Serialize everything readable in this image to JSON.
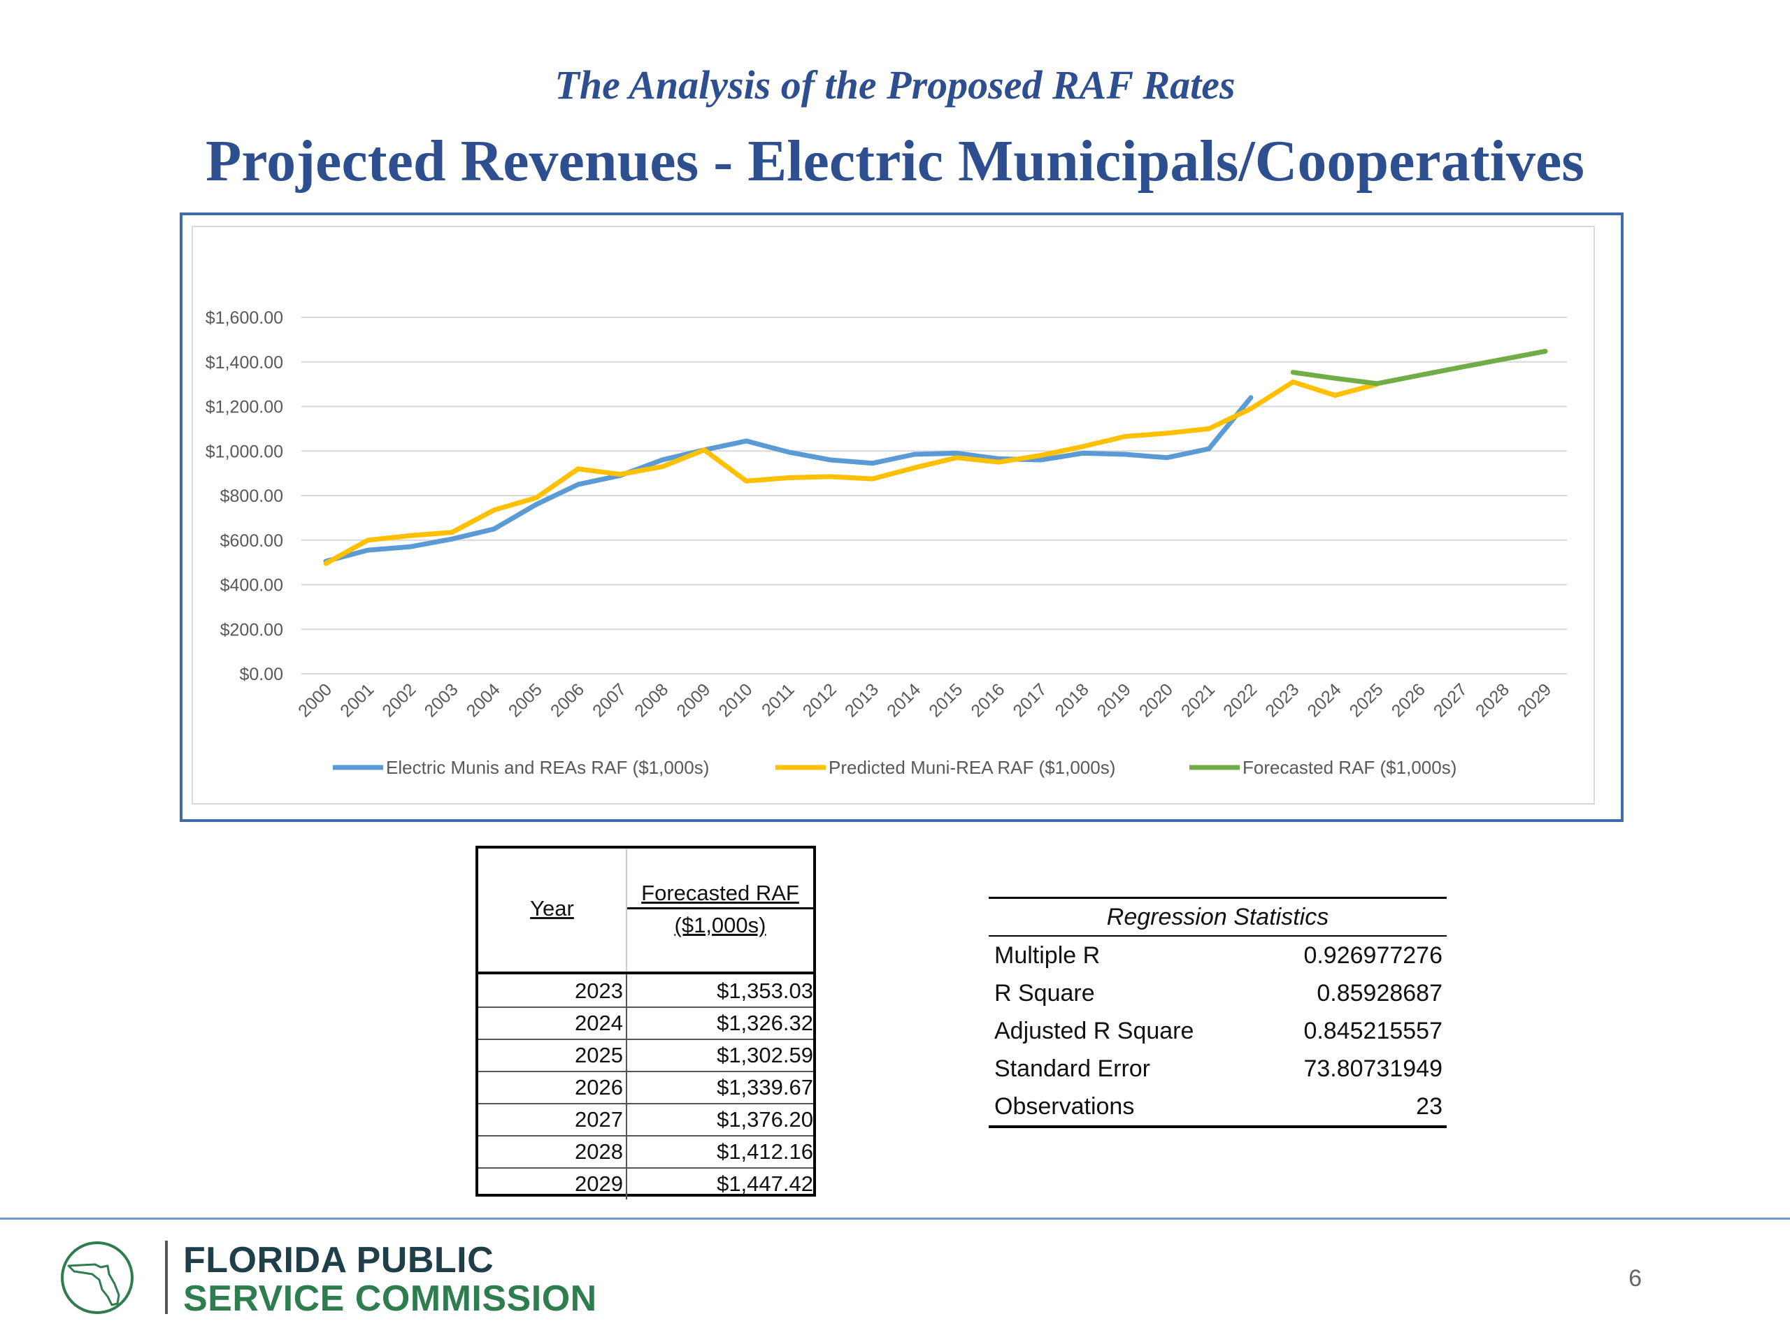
{
  "slide": {
    "subtitle": "The Analysis of the Proposed RAF Rates",
    "title": "Projected Revenues - Electric Municipals/Cooperatives",
    "page_number": "6"
  },
  "org": {
    "line1": "FLORIDA PUBLIC",
    "line2": "SERVICE COMMISSION"
  },
  "chart_data": {
    "type": "line",
    "title": "",
    "xlabel": "",
    "ylabel": "",
    "x": [
      "2000",
      "2001",
      "2002",
      "2003",
      "2004",
      "2005",
      "2006",
      "2007",
      "2008",
      "2009",
      "2010",
      "2011",
      "2012",
      "2013",
      "2014",
      "2015",
      "2016",
      "2017",
      "2018",
      "2019",
      "2020",
      "2021",
      "2022",
      "2023",
      "2024",
      "2025",
      "2026",
      "2027",
      "2028",
      "2029"
    ],
    "y_ticks": [
      "$0.00",
      "$200.00",
      "$400.00",
      "$600.00",
      "$800.00",
      "$1,000.00",
      "$1,200.00",
      "$1,400.00",
      "$1,600.00"
    ],
    "ylim": [
      0,
      1600
    ],
    "grid": true,
    "legend_position": "bottom",
    "series": [
      {
        "name": "Electric Munis and REAs RAF ($1,000s)",
        "color": "#5b9bd5",
        "values": [
          505,
          555,
          570,
          605,
          650,
          760,
          850,
          890,
          960,
          1005,
          1045,
          995,
          960,
          945,
          985,
          990,
          965,
          960,
          990,
          985,
          970,
          1010,
          1240,
          null,
          null,
          null,
          null,
          null,
          null,
          null
        ]
      },
      {
        "name": "Predicted Muni-REA RAF ($1,000s)",
        "color": "#ffc000",
        "values": [
          495,
          600,
          620,
          635,
          735,
          790,
          920,
          895,
          930,
          1005,
          865,
          880,
          885,
          875,
          925,
          970,
          950,
          980,
          1020,
          1065,
          1080,
          1100,
          1190,
          1310,
          1250,
          1300,
          null,
          null,
          null,
          null
        ]
      },
      {
        "name": "Forecasted RAF ($1,000s)",
        "color": "#70ad47",
        "values": [
          null,
          null,
          null,
          null,
          null,
          null,
          null,
          null,
          null,
          null,
          null,
          null,
          null,
          null,
          null,
          null,
          null,
          null,
          null,
          null,
          null,
          null,
          null,
          1353.03,
          1326.32,
          1302.59,
          1339.67,
          1376.2,
          1412.16,
          1447.42
        ]
      }
    ]
  },
  "forecast_table": {
    "header_year": "Year",
    "header_raf_line1": "Forecasted RAF",
    "header_raf_line2": "($1,000s)",
    "rows": [
      {
        "year": "2023",
        "value": "$1,353.03"
      },
      {
        "year": "2024",
        "value": "$1,326.32"
      },
      {
        "year": "2025",
        "value": "$1,302.59"
      },
      {
        "year": "2026",
        "value": "$1,339.67"
      },
      {
        "year": "2027",
        "value": "$1,376.20"
      },
      {
        "year": "2028",
        "value": "$1,412.16"
      },
      {
        "year": "2029",
        "value": "$1,447.42"
      }
    ]
  },
  "regression": {
    "title": "Regression Statistics",
    "rows": [
      {
        "label": "Multiple R",
        "value": "0.926977276"
      },
      {
        "label": "R Square",
        "value": "0.85928687"
      },
      {
        "label": "Adjusted R Square",
        "value": "0.845215557"
      },
      {
        "label": "Standard Error",
        "value": "73.80731949"
      },
      {
        "label": "Observations",
        "value": "23"
      }
    ]
  }
}
